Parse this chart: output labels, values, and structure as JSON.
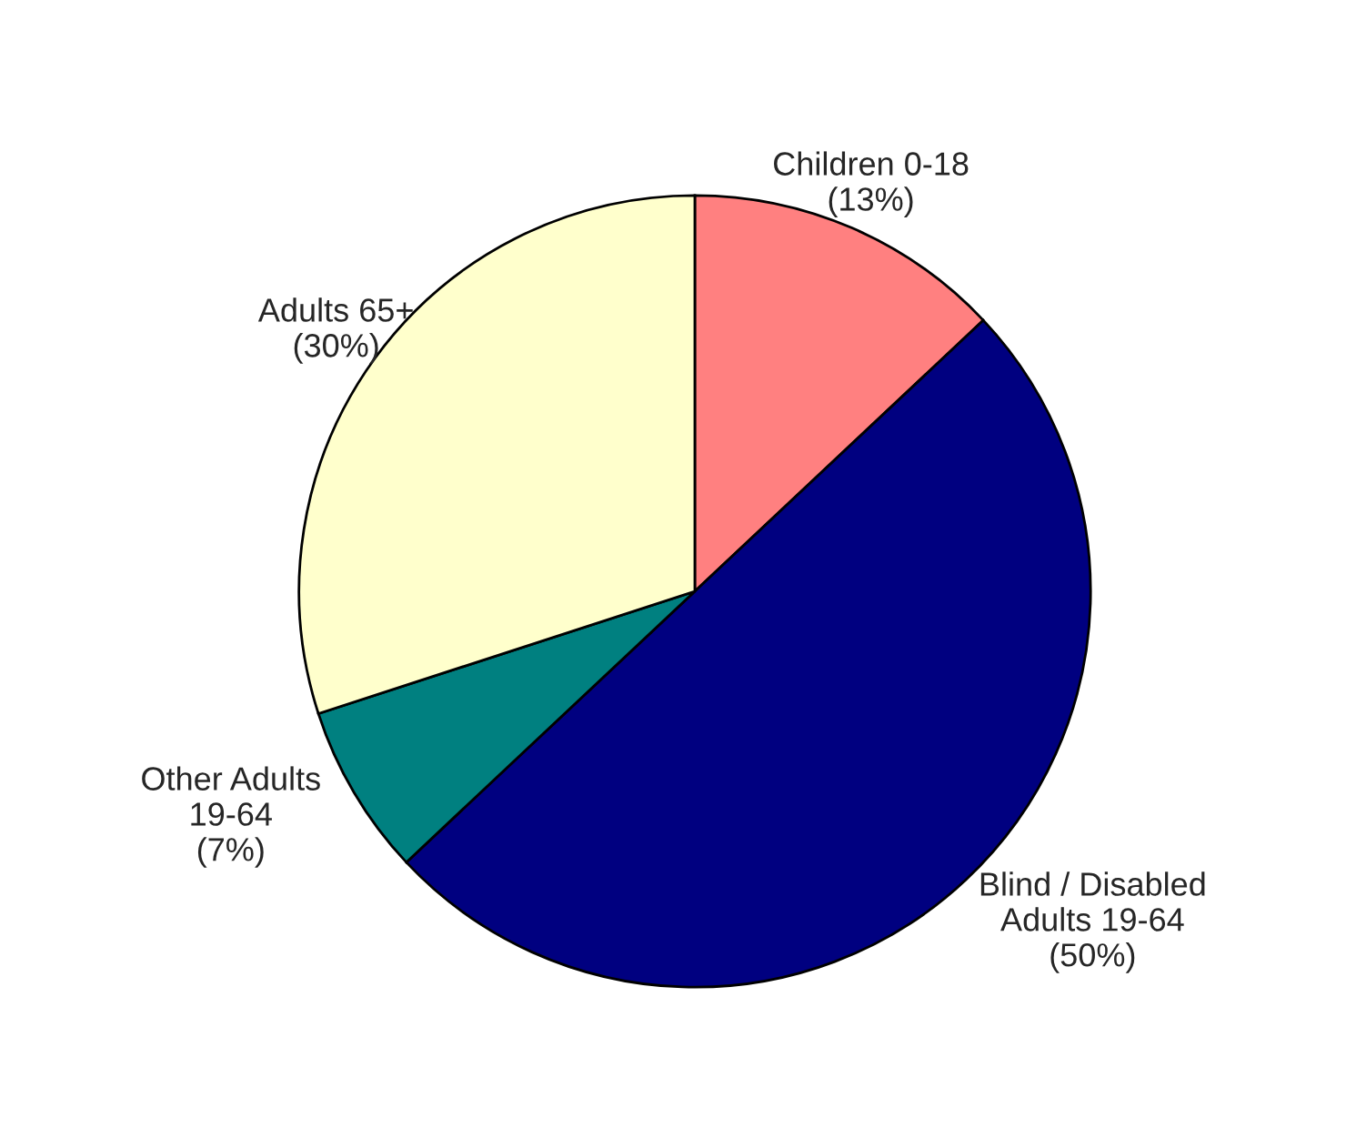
{
  "chart_data": {
    "type": "pie",
    "categories": [
      "Children 0-18",
      "Blind / Disabled\nAdults 19-64",
      "Other Adults\n19-64",
      "Adults 65+"
    ],
    "values": [
      13,
      50,
      7,
      30
    ],
    "value_labels": [
      "(13%)",
      "(50%)",
      "(7%)",
      "(30%)"
    ],
    "colors": [
      "#ff8080",
      "#000080",
      "#008080",
      "#ffffcc"
    ],
    "legend": false
  }
}
